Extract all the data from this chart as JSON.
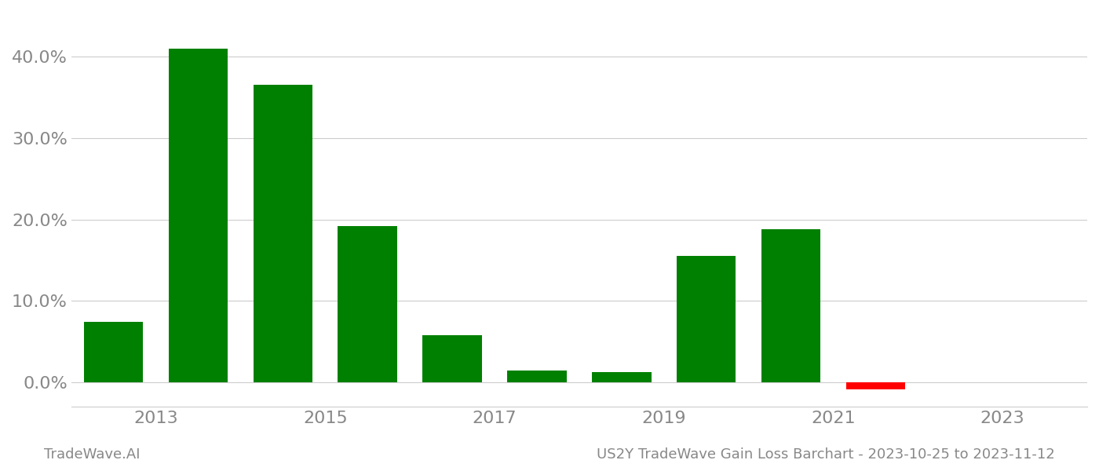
{
  "years": [
    2013,
    2014,
    2015,
    2016,
    2017,
    2018,
    2019,
    2020,
    2021,
    2022
  ],
  "values": [
    0.074,
    0.41,
    0.365,
    0.192,
    0.058,
    0.014,
    0.013,
    0.155,
    0.188,
    -0.009
  ],
  "bar_colors": [
    "#008000",
    "#008000",
    "#008000",
    "#008000",
    "#008000",
    "#008000",
    "#008000",
    "#008000",
    "#008000",
    "#ff0000"
  ],
  "footer_left": "TradeWave.AI",
  "footer_right": "US2Y TradeWave Gain Loss Barchart - 2023-10-25 to 2023-11-12",
  "background_color": "#ffffff",
  "grid_color": "#cccccc",
  "tick_label_color": "#888888",
  "footer_color": "#888888",
  "bar_width": 0.7,
  "x_tick_positions": [
    2013.5,
    2015.5,
    2017.5,
    2019.5,
    2021.5,
    2023.5
  ],
  "x_tick_labels": [
    "2013",
    "2015",
    "2017",
    "2019",
    "2021",
    "2023"
  ],
  "x_min": 2012.5,
  "x_max": 2024.5,
  "ylim_min": -0.03,
  "ylim_max": 0.455,
  "y_ticks": [
    0.0,
    0.1,
    0.2,
    0.3,
    0.4
  ]
}
